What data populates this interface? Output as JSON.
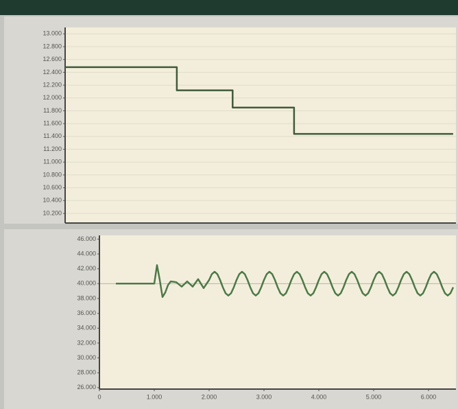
{
  "chart_data": [
    {
      "type": "line",
      "xlim": [
        0,
        7000
      ],
      "ylim": [
        10050,
        13100
      ],
      "yticks": [
        {
          "value": 10200,
          "label": "10.200"
        },
        {
          "value": 10400,
          "label": "10.400"
        },
        {
          "value": 10600,
          "label": "10.600"
        },
        {
          "value": 10800,
          "label": "10.800"
        },
        {
          "value": 11000,
          "label": "11.000"
        },
        {
          "value": 11200,
          "label": "11.200"
        },
        {
          "value": 11400,
          "label": "11.400"
        },
        {
          "value": 11600,
          "label": "11.600"
        },
        {
          "value": 11800,
          "label": "11.800"
        },
        {
          "value": 12000,
          "label": "12.000"
        },
        {
          "value": 12200,
          "label": "12.200"
        },
        {
          "value": 12400,
          "label": "12.400"
        },
        {
          "value": 12600,
          "label": "12.600"
        },
        {
          "value": 12800,
          "label": "12.800"
        },
        {
          "value": 13000,
          "label": "13.000"
        }
      ],
      "grid": true,
      "x": [
        0,
        2000,
        2000,
        3000,
        3000,
        4100,
        4100,
        6950
      ],
      "series": [
        {
          "color": "#3f5b3b",
          "values": [
            12480,
            12480,
            12120,
            12120,
            11850,
            11850,
            11440,
            11440
          ]
        }
      ]
    },
    {
      "type": "line",
      "xlim": [
        0,
        6500
      ],
      "ylim": [
        25800,
        46500
      ],
      "xticks": [
        0,
        {
          "value": 1000,
          "label": "1.000"
        },
        {
          "value": 2000,
          "label": "2.000"
        },
        {
          "value": 3000,
          "label": "3.000"
        },
        {
          "value": 4000,
          "label": "4.000"
        },
        {
          "value": 5000,
          "label": "5.000"
        },
        {
          "value": 6000,
          "label": "6.000"
        }
      ],
      "yticks": [
        {
          "value": 26000,
          "label": "26.000"
        },
        {
          "value": 28000,
          "label": "28.000"
        },
        {
          "value": 30000,
          "label": "30.000"
        },
        {
          "value": 32000,
          "label": "32.000"
        },
        {
          "value": 34000,
          "label": "34.000"
        },
        {
          "value": 36000,
          "label": "36.000"
        },
        {
          "value": 38000,
          "label": "38.000"
        },
        {
          "value": 40000,
          "label": "40.000"
        },
        {
          "value": 42000,
          "label": "42.000"
        },
        {
          "value": 44000,
          "label": "44.000"
        },
        {
          "value": 46000,
          "label": "46.000"
        }
      ],
      "grid": false,
      "reference_line": 40000,
      "x": [
        300,
        1000,
        1050,
        1100,
        1150,
        1200,
        1250,
        1300,
        1400,
        1500,
        1600,
        1700,
        1800,
        1900,
        2000,
        2050,
        2100,
        2150,
        2200,
        2250,
        2300,
        2350,
        2400,
        2450,
        2500,
        2550,
        2600,
        2650,
        2700,
        2750,
        2800,
        2850,
        2900,
        2950,
        3000,
        3050,
        3100,
        3150,
        3200,
        3250,
        3300,
        3350,
        3400,
        3450,
        3500,
        3550,
        3600,
        3650,
        3700,
        3750,
        3800,
        3850,
        3900,
        3950,
        4000,
        4050,
        4100,
        4150,
        4200,
        4250,
        4300,
        4350,
        4400,
        4450,
        4500,
        4550,
        4600,
        4650,
        4700,
        4750,
        4800,
        4850,
        4900,
        4950,
        5000,
        5050,
        5100,
        5150,
        5200,
        5250,
        5300,
        5350,
        5400,
        5450,
        5500,
        5550,
        5600,
        5650,
        5700,
        5750,
        5800,
        5850,
        5900,
        5950,
        6000,
        6050,
        6100,
        6150,
        6200,
        6250,
        6300,
        6350,
        6400,
        6450
      ],
      "series": [
        {
          "color": "#4b7a47",
          "values": [
            40000,
            40000,
            42500,
            40500,
            38200,
            38800,
            39800,
            40300,
            40200,
            39600,
            40300,
            39600,
            40600,
            39400,
            40490,
            41290,
            41600,
            41290,
            40490,
            39510,
            38710,
            38400,
            38710,
            39510,
            40490,
            41290,
            41600,
            41290,
            40490,
            39510,
            38710,
            38400,
            38710,
            39510,
            40490,
            41290,
            41600,
            41290,
            40490,
            39510,
            38710,
            38400,
            38710,
            39510,
            40490,
            41290,
            41600,
            41290,
            40490,
            39510,
            38710,
            38400,
            38710,
            39510,
            40490,
            41290,
            41600,
            41290,
            40490,
            39510,
            38710,
            38400,
            38710,
            39510,
            40490,
            41290,
            41600,
            41290,
            40490,
            39510,
            38710,
            38400,
            38710,
            39510,
            40490,
            41290,
            41600,
            41290,
            40490,
            39510,
            38710,
            38400,
            38710,
            39510,
            40490,
            41290,
            41600,
            41290,
            40490,
            39510,
            38710,
            38400,
            38710,
            39510,
            40490,
            41290,
            41600,
            41290,
            40490,
            39510,
            38710,
            38400,
            38710,
            39510
          ]
        }
      ]
    }
  ]
}
